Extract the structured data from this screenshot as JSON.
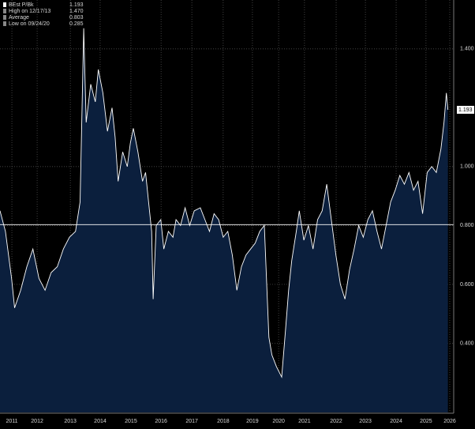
{
  "chart_data": {
    "type": "area",
    "series": [
      {
        "name": "BEst P/Bk",
        "color": "#ffffff",
        "fill": "#0b1f3d",
        "x": [
          2011.22,
          2011.4,
          2011.6,
          2011.7,
          2011.9,
          2012.1,
          2012.3,
          2012.5,
          2012.7,
          2012.9,
          2013.1,
          2013.3,
          2013.5,
          2013.7,
          2013.85,
          2013.97,
          2014.05,
          2014.2,
          2014.35,
          2014.45,
          2014.6,
          2014.75,
          2014.9,
          2015.0,
          2015.1,
          2015.25,
          2015.4,
          2015.5,
          2015.6,
          2015.75,
          2015.9,
          2016.0,
          2016.1,
          2016.2,
          2016.25,
          2016.35,
          2016.5,
          2016.6,
          2016.75,
          2016.9,
          2017.0,
          2017.15,
          2017.3,
          2017.45,
          2017.6,
          2017.8,
          2017.95,
          2018.1,
          2018.25,
          2018.4,
          2018.55,
          2018.7,
          2018.85,
          2019.0,
          2019.15,
          2019.3,
          2019.45,
          2019.6,
          2019.75,
          2019.9,
          2020.0,
          2020.05,
          2020.15,
          2020.3,
          2020.47,
          2020.6,
          2020.7,
          2020.8,
          2020.95,
          2021.05,
          2021.2,
          2021.35,
          2021.5,
          2021.65,
          2021.8,
          2021.95,
          2022.1,
          2022.25,
          2022.4,
          2022.55,
          2022.7,
          2022.85,
          2023.0,
          2023.15,
          2023.3,
          2023.45,
          2023.6,
          2023.75,
          2023.9,
          2024.05,
          2024.2,
          2024.35,
          2024.5,
          2024.65,
          2024.8,
          2024.95,
          2025.1,
          2025.25,
          2025.4,
          2025.55,
          2025.7,
          2025.8,
          2025.88,
          2025.93
        ],
        "values": [
          0.85,
          0.78,
          0.62,
          0.52,
          0.58,
          0.66,
          0.72,
          0.62,
          0.58,
          0.64,
          0.66,
          0.72,
          0.76,
          0.78,
          0.88,
          1.47,
          1.15,
          1.28,
          1.22,
          1.33,
          1.25,
          1.12,
          1.2,
          1.1,
          0.95,
          1.05,
          1.0,
          1.08,
          1.13,
          1.05,
          0.95,
          0.98,
          0.88,
          0.78,
          0.55,
          0.8,
          0.82,
          0.72,
          0.78,
          0.76,
          0.82,
          0.8,
          0.86,
          0.8,
          0.85,
          0.86,
          0.82,
          0.78,
          0.84,
          0.82,
          0.76,
          0.78,
          0.7,
          0.58,
          0.66,
          0.7,
          0.72,
          0.74,
          0.78,
          0.8,
          0.55,
          0.42,
          0.36,
          0.32,
          0.285,
          0.45,
          0.58,
          0.68,
          0.78,
          0.85,
          0.75,
          0.8,
          0.72,
          0.82,
          0.85,
          0.94,
          0.82,
          0.7,
          0.6,
          0.55,
          0.65,
          0.72,
          0.8,
          0.76,
          0.82,
          0.85,
          0.78,
          0.72,
          0.8,
          0.88,
          0.92,
          0.97,
          0.94,
          0.98,
          0.92,
          0.95,
          0.84,
          0.98,
          1.0,
          0.98,
          1.06,
          1.15,
          1.25,
          1.193
        ]
      }
    ],
    "average": 0.803,
    "legend": [
      {
        "label": "BEst P/Bk",
        "value": 1.193
      },
      {
        "label": "High on 12/17/13",
        "value": 1.47,
        "value_label": "1.470"
      },
      {
        "label": "Average",
        "value": 0.803
      },
      {
        "label": "Low on 09/24/20",
        "value": 0.285
      }
    ],
    "xlim": [
      2011.22,
      2026.12
    ],
    "xticks": [
      {
        "value": 2011.61,
        "label": "2011"
      },
      {
        "value": 2012.44,
        "label": "2012"
      },
      {
        "value": 2013.53,
        "label": "2013"
      },
      {
        "value": 2014.51,
        "label": "2014"
      },
      {
        "value": 2015.52,
        "label": "2015"
      },
      {
        "value": 2016.51,
        "label": "2016"
      },
      {
        "value": 2017.52,
        "label": "2017"
      },
      {
        "value": 2018.55,
        "label": "2018"
      },
      {
        "value": 2019.51,
        "label": "2019"
      },
      {
        "value": 2020.37,
        "label": "2020"
      },
      {
        "value": 2021.22,
        "label": "2021"
      },
      {
        "value": 2022.26,
        "label": "2022"
      },
      {
        "value": 2023.22,
        "label": "2023"
      },
      {
        "value": 2024.23,
        "label": "2024"
      },
      {
        "value": 2025.21,
        "label": "2025"
      },
      {
        "value": 2025.99,
        "label": "2026"
      }
    ],
    "ylim": [
      0.165,
      1.566
    ],
    "yticks": [
      {
        "value": 0.4,
        "label": "0.400"
      },
      {
        "value": 0.6,
        "label": "0.600"
      },
      {
        "value": 0.8,
        "label": "0.800"
      },
      {
        "value": 1.0,
        "label": "1.000"
      },
      {
        "value": 1.4,
        "label": "1.400"
      }
    ],
    "grid": true
  }
}
